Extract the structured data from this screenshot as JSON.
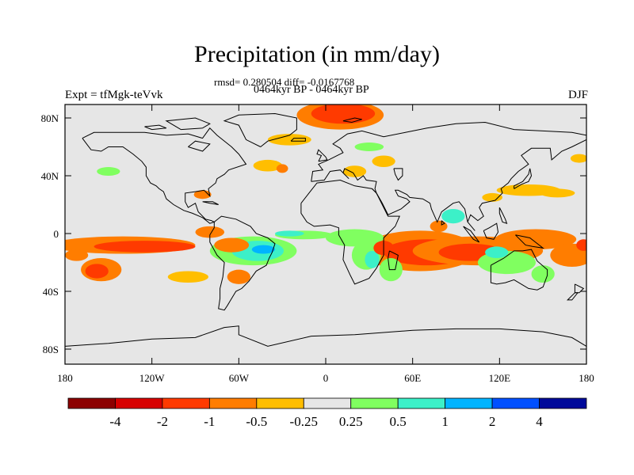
{
  "header": {
    "title": "Precipitation (in mm/day)",
    "stats": "rmsd= 0.280504 diff= -0.0167768",
    "period": "0464kyr BP - 0464kyr BP",
    "experiment": "Expt = tfMgk-teVvk",
    "season": "DJF"
  },
  "map": {
    "longitude_ticks": [
      "180",
      "120W",
      "60W",
      "0",
      "60E",
      "120E",
      "180"
    ],
    "latitude_ticks": [
      "80N",
      "40N",
      "0",
      "40S",
      "80S"
    ],
    "background_color": "#e6e6e6",
    "coastline_color": "#000000"
  },
  "colorbar": {
    "colors": [
      "#8c0000",
      "#d70000",
      "#ff3a00",
      "#ff7d00",
      "#ffbe00",
      "#e6e6e6",
      "#80ff60",
      "#3cf0c8",
      "#00b4ff",
      "#0050ff",
      "#000a9a"
    ],
    "labels": [
      "-4",
      "-2",
      "-1",
      "-0.5",
      "-0.25",
      "0.25",
      "0.5",
      "1",
      "2",
      "4"
    ]
  },
  "anomaly_regions": [
    {
      "lon": 10,
      "lat": 82,
      "level": "-1"
    },
    {
      "lon": 8,
      "lat": 78,
      "level": "-0.5"
    },
    {
      "lon": 55,
      "lat": -15,
      "level": "-1"
    },
    {
      "lon": 60,
      "lat": -12,
      "level": "-0.5"
    },
    {
      "lon": 70,
      "lat": -18,
      "level": "-1"
    },
    {
      "lon": 100,
      "lat": -15,
      "level": "-1"
    },
    {
      "lon": 130,
      "lat": -2,
      "level": "-0.5"
    },
    {
      "lon": -120,
      "lat": -8,
      "level": "-1"
    },
    {
      "lon": -155,
      "lat": -25,
      "level": "-1"
    },
    {
      "lon": -100,
      "lat": -20,
      "level": "-0.5"
    },
    {
      "lon": -50,
      "lat": -15,
      "level": "0.5"
    },
    {
      "lon": -45,
      "lat": -15,
      "level": "1"
    },
    {
      "lon": 25,
      "lat": -15,
      "level": "0.5"
    },
    {
      "lon": 40,
      "lat": -20,
      "level": "1"
    },
    {
      "lon": 90,
      "lat": 12,
      "level": "1"
    },
    {
      "lon": 120,
      "lat": -25,
      "level": "0.5"
    },
    {
      "lon": 5,
      "lat": -2,
      "level": "0.25"
    },
    {
      "lon": 130,
      "lat": 30,
      "level": "-0.25"
    },
    {
      "lon": -40,
      "lat": 47,
      "level": "-0.25"
    },
    {
      "lon": 30,
      "lat": 60,
      "level": "0.25"
    }
  ]
}
